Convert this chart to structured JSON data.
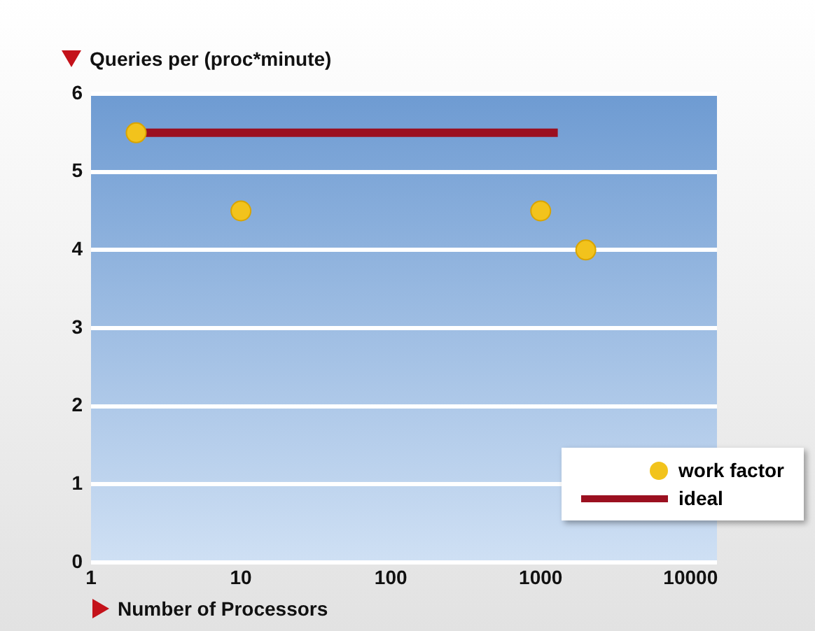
{
  "chart_data": {
    "type": "scatter",
    "ylabel": "Queries per (proc*minute)",
    "xlabel": "Number of Processors",
    "log": "x",
    "xlim": [
      1,
      15000
    ],
    "xticks": [
      1,
      10,
      100,
      1000,
      10000
    ],
    "ylim": [
      0,
      6
    ],
    "yticks": [
      0,
      1,
      2,
      3,
      4,
      5,
      6
    ],
    "grid": "y",
    "legend": "bottom right",
    "series": [
      {
        "name": "work factor",
        "marker": "circle",
        "color": "#f2c31c",
        "x": [
          2,
          10,
          1000,
          2000
        ],
        "values": [
          5.5,
          4.5,
          4.5,
          4
        ]
      },
      {
        "name": "ideal",
        "type": "line",
        "marker": "none",
        "line_style": "solid",
        "color": "#9b1020",
        "x": [
          2,
          1300
        ],
        "values": [
          5.5,
          5.5
        ]
      }
    ]
  }
}
